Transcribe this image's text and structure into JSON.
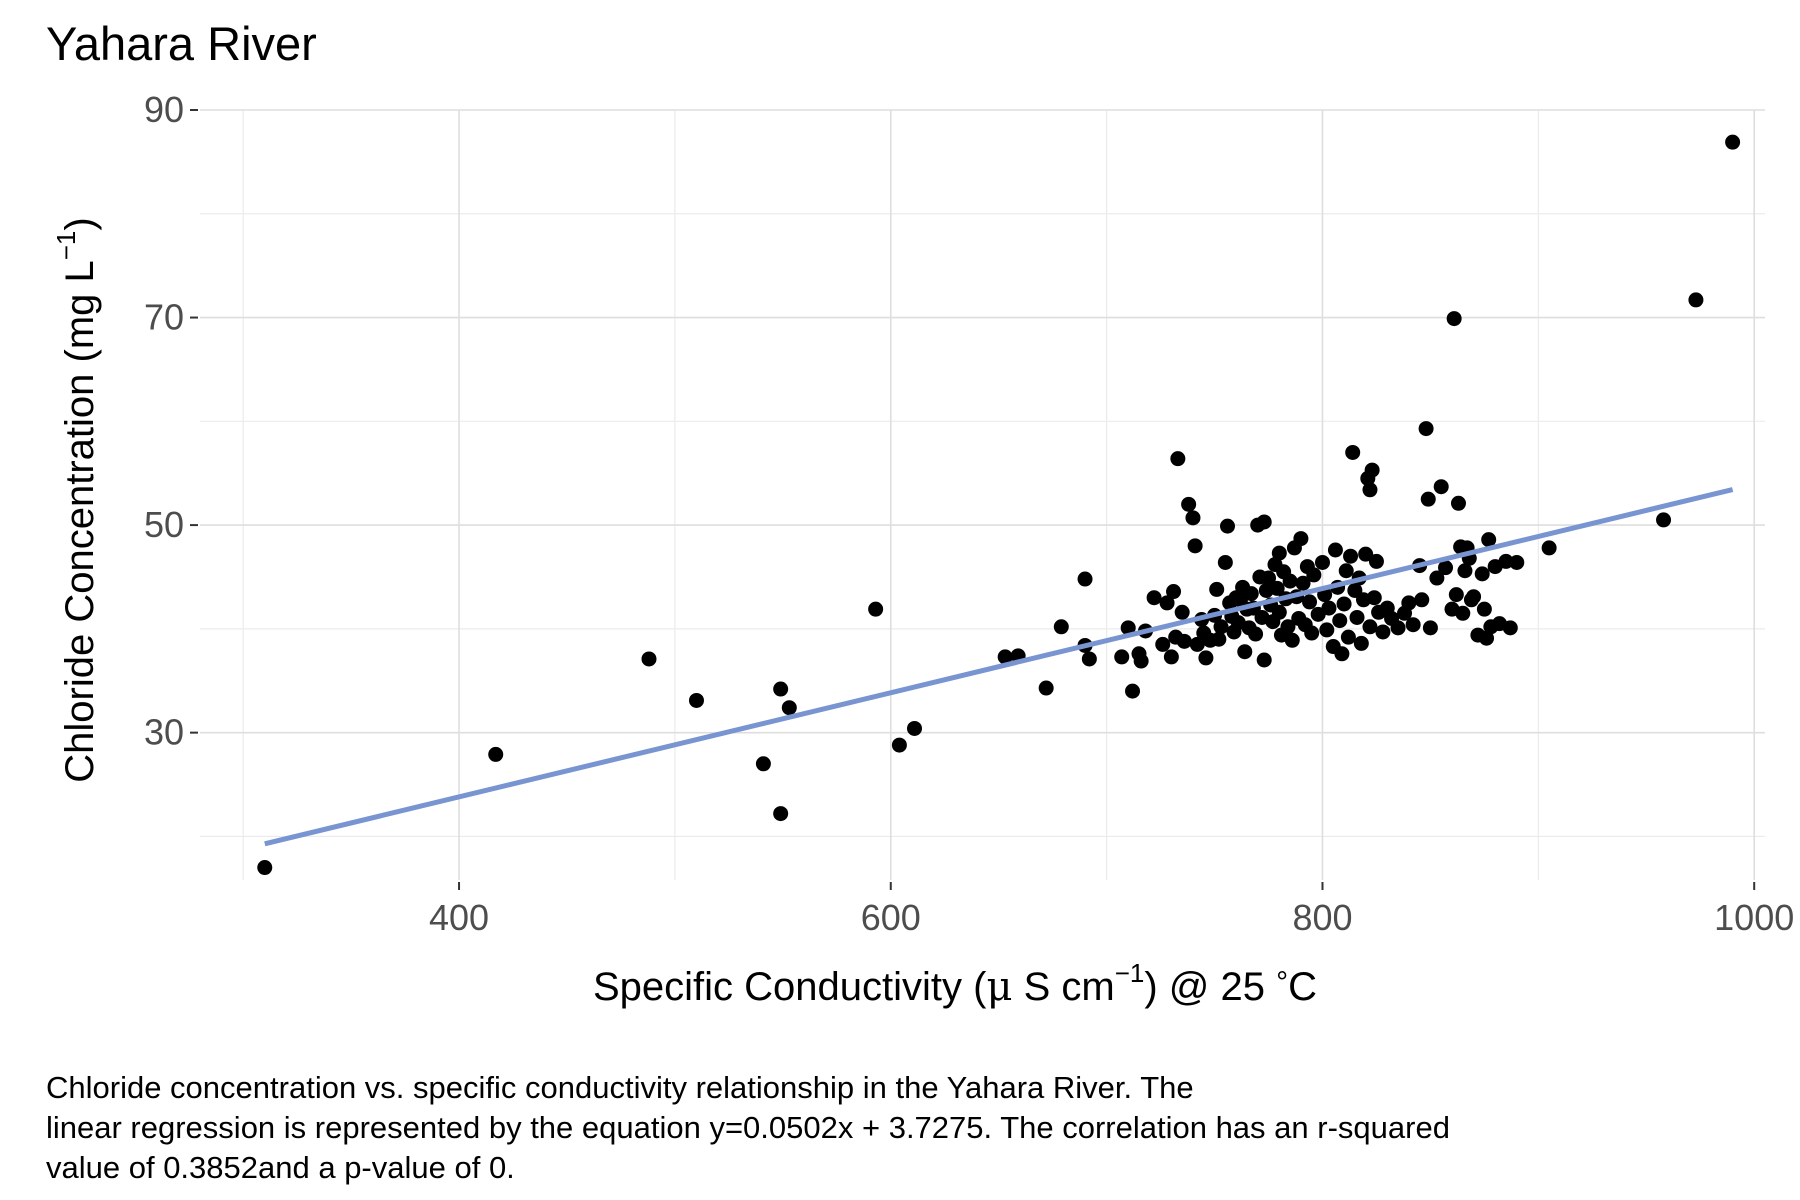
{
  "chart_data": {
    "type": "scatter",
    "title": "Yahara River",
    "xlabel": {
      "prefix": "Specific Conductivity (",
      "mu": "μ",
      "middle": " S cm",
      "sup": "−1",
      "suffix": ") @ 25 ",
      "degree": "°",
      "unit": "C"
    },
    "ylabel": {
      "prefix": "Chloride Concentration (mg L",
      "sup": "−1",
      "suffix": ")"
    },
    "xlim": [
      280,
      1005
    ],
    "ylim": [
      15.8,
      90
    ],
    "xticks": [
      400,
      600,
      800,
      1000
    ],
    "xtick_labels": [
      "400",
      "600",
      "800",
      "1000"
    ],
    "xminor": [
      300,
      500,
      700,
      900
    ],
    "yticks": [
      30,
      50,
      70,
      90
    ],
    "ytick_labels": [
      "30",
      "50",
      "70",
      "90"
    ],
    "yminor": [
      20,
      40,
      60,
      80
    ],
    "regression": {
      "slope": 0.0502,
      "intercept": 3.7275,
      "x_range": [
        310,
        990
      ],
      "color": "#7895d1"
    },
    "point_color": "#000000",
    "points": [
      [
        310,
        17.0
      ],
      [
        417,
        27.9
      ],
      [
        488,
        37.1
      ],
      [
        510,
        33.1
      ],
      [
        541,
        27.0
      ],
      [
        549,
        34.2
      ],
      [
        549,
        22.2
      ],
      [
        553,
        32.4
      ],
      [
        593,
        41.9
      ],
      [
        604,
        28.8
      ],
      [
        611,
        30.4
      ],
      [
        653,
        37.3
      ],
      [
        659,
        37.4
      ],
      [
        672,
        34.3
      ],
      [
        679,
        40.2
      ],
      [
        690,
        44.8
      ],
      [
        690,
        38.4
      ],
      [
        692,
        37.1
      ],
      [
        707,
        37.3
      ],
      [
        710,
        40.1
      ],
      [
        712,
        34.0
      ],
      [
        715,
        37.6
      ],
      [
        716,
        36.9
      ],
      [
        718,
        39.8
      ],
      [
        722,
        43.0
      ],
      [
        726,
        38.5
      ],
      [
        728,
        42.5
      ],
      [
        730,
        37.3
      ],
      [
        731,
        43.6
      ],
      [
        732,
        39.2
      ],
      [
        733,
        56.4
      ],
      [
        735,
        41.6
      ],
      [
        736,
        38.8
      ],
      [
        738,
        52.0
      ],
      [
        740,
        50.7
      ],
      [
        741,
        48.0
      ],
      [
        742,
        38.5
      ],
      [
        744,
        40.9
      ],
      [
        745,
        39.6
      ],
      [
        746,
        37.2
      ],
      [
        748,
        38.9
      ],
      [
        750,
        41.3
      ],
      [
        751,
        43.8
      ],
      [
        752,
        39.0
      ],
      [
        753,
        40.2
      ],
      [
        755,
        46.4
      ],
      [
        756,
        49.9
      ],
      [
        757,
        42.5
      ],
      [
        758,
        41.2
      ],
      [
        759,
        39.7
      ],
      [
        760,
        43.0
      ],
      [
        761,
        40.6
      ],
      [
        762,
        42.8
      ],
      [
        763,
        44.0
      ],
      [
        764,
        37.8
      ],
      [
        765,
        41.9
      ],
      [
        766,
        40.1
      ],
      [
        767,
        43.4
      ],
      [
        768,
        42.0
      ],
      [
        769,
        39.5
      ],
      [
        770,
        50.0
      ],
      [
        771,
        45.0
      ],
      [
        772,
        41.1
      ],
      [
        773,
        37.0
      ],
      [
        773,
        50.3
      ],
      [
        774,
        43.7
      ],
      [
        775,
        44.9
      ],
      [
        776,
        42.3
      ],
      [
        777,
        40.7
      ],
      [
        778,
        46.2
      ],
      [
        779,
        43.9
      ],
      [
        780,
        41.6
      ],
      [
        780,
        47.3
      ],
      [
        781,
        39.4
      ],
      [
        782,
        45.5
      ],
      [
        783,
        42.9
      ],
      [
        784,
        40.2
      ],
      [
        785,
        44.6
      ],
      [
        786,
        38.9
      ],
      [
        787,
        47.8
      ],
      [
        788,
        43.1
      ],
      [
        789,
        41.0
      ],
      [
        790,
        48.7
      ],
      [
        791,
        44.4
      ],
      [
        792,
        40.4
      ],
      [
        793,
        46.0
      ],
      [
        794,
        42.6
      ],
      [
        795,
        39.6
      ],
      [
        796,
        45.2
      ],
      [
        798,
        41.4
      ],
      [
        800,
        46.4
      ],
      [
        801,
        43.3
      ],
      [
        802,
        39.9
      ],
      [
        803,
        42.0
      ],
      [
        805,
        38.3
      ],
      [
        806,
        47.6
      ],
      [
        807,
        44.0
      ],
      [
        808,
        40.8
      ],
      [
        809,
        37.6
      ],
      [
        810,
        42.4
      ],
      [
        811,
        45.6
      ],
      [
        812,
        39.2
      ],
      [
        813,
        47.0
      ],
      [
        814,
        57.0
      ],
      [
        815,
        43.7
      ],
      [
        816,
        41.1
      ],
      [
        817,
        44.9
      ],
      [
        818,
        38.6
      ],
      [
        819,
        42.8
      ],
      [
        820,
        47.2
      ],
      [
        821,
        54.5
      ],
      [
        822,
        40.2
      ],
      [
        822,
        53.4
      ],
      [
        823,
        55.3
      ],
      [
        824,
        43.0
      ],
      [
        825,
        46.5
      ],
      [
        826,
        41.6
      ],
      [
        828,
        39.7
      ],
      [
        830,
        42.0
      ],
      [
        832,
        41.0
      ],
      [
        835,
        40.1
      ],
      [
        838,
        41.5
      ],
      [
        840,
        42.5
      ],
      [
        842,
        40.4
      ],
      [
        845,
        46.1
      ],
      [
        846,
        42.8
      ],
      [
        848,
        59.3
      ],
      [
        849,
        52.5
      ],
      [
        850,
        40.1
      ],
      [
        853,
        44.9
      ],
      [
        855,
        53.7
      ],
      [
        857,
        45.9
      ],
      [
        860,
        41.9
      ],
      [
        861,
        69.9
      ],
      [
        862,
        43.3
      ],
      [
        863,
        52.1
      ],
      [
        864,
        47.9
      ],
      [
        865,
        41.5
      ],
      [
        866,
        45.6
      ],
      [
        867,
        47.8
      ],
      [
        868,
        46.8
      ],
      [
        869,
        42.8
      ],
      [
        870,
        43.1
      ],
      [
        872,
        39.4
      ],
      [
        874,
        45.3
      ],
      [
        875,
        41.9
      ],
      [
        876,
        39.1
      ],
      [
        877,
        48.6
      ],
      [
        878,
        40.2
      ],
      [
        880,
        46.0
      ],
      [
        882,
        40.5
      ],
      [
        885,
        46.5
      ],
      [
        887,
        40.1
      ],
      [
        890,
        46.4
      ],
      [
        905,
        47.8
      ],
      [
        958,
        50.5
      ],
      [
        973,
        71.7
      ],
      [
        990,
        86.9
      ]
    ]
  },
  "caption": {
    "line1": "Chloride concentration vs. specific conductivity relationship in the Yahara River. The",
    "line2": "linear regression is represented by the equation y=0.0502x + 3.7275. The correlation has an r-squared",
    "line3": "value of 0.3852and a p-value of 0."
  }
}
